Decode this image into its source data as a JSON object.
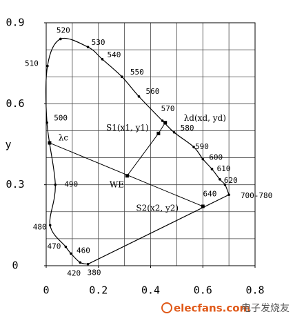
{
  "chart_data": {
    "type": "line",
    "y_label": "y",
    "x": [
      0.16,
      0.13,
      0.095,
      0.075,
      0.015,
      0.035,
      0.003,
      0.005,
      0.055,
      0.16,
      0.215,
      0.29,
      0.355,
      0.445,
      0.49,
      0.565,
      0.6,
      0.635,
      0.665,
      0.685,
      0.7
    ],
    "values": [
      0.006,
      0.012,
      0.045,
      0.07,
      0.15,
      0.3,
      0.53,
      0.74,
      0.84,
      0.81,
      0.765,
      0.7,
      0.627,
      0.537,
      0.494,
      0.44,
      0.395,
      0.358,
      0.32,
      0.3,
      0.263
    ],
    "point_labels": [
      "380",
      "420",
      "460",
      "470",
      "480",
      "490",
      "500",
      "510",
      "520",
      "530",
      "540",
      "550",
      "560",
      "570",
      "580",
      "590",
      "600",
      "610",
      "620",
      "640",
      "700-780"
    ],
    "xlim": [
      0,
      0.8
    ],
    "ylim": [
      0,
      0.9
    ],
    "xticks": [
      0,
      0.2,
      0.4,
      0.6,
      0.8
    ],
    "yticks": [
      0,
      0.3,
      0.6,
      0.9
    ],
    "xgrid": [
      0.1,
      0.2,
      0.3,
      0.4,
      0.5,
      0.6,
      0.7
    ],
    "ygrid": [
      0.1,
      0.2,
      0.3,
      0.4,
      0.5,
      0.6,
      0.7,
      0.8
    ],
    "color": "#000000",
    "annotations": [
      {
        "label": "λd(xd, yd)",
        "x": 0.456,
        "y": 0.53
      },
      {
        "label": "S1(x1, y1)",
        "x": 0.43,
        "y": 0.49
      },
      {
        "label": "WE",
        "x": 0.31,
        "y": 0.333
      },
      {
        "label": "λc",
        "x": 0.013,
        "y": 0.455
      },
      {
        "label": "S2(x2, y2)",
        "x": 0.6,
        "y": 0.22
      }
    ],
    "watermark": {
      "site": "elecfans.com",
      "name": "电子发烧友"
    }
  }
}
